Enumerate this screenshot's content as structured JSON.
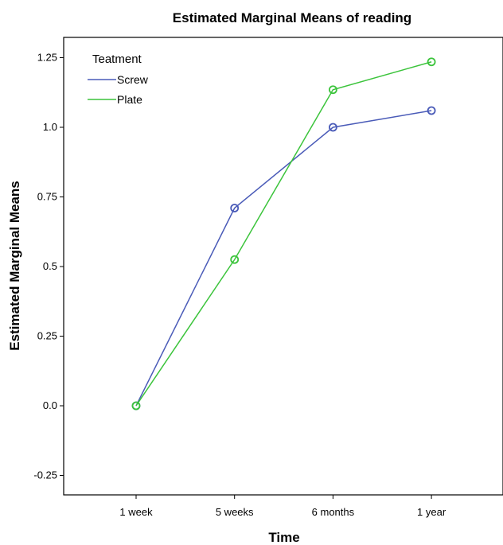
{
  "chart_data": {
    "type": "line",
    "title": "Estimated Marginal Means of reading",
    "xlabel": "Time",
    "ylabel": "Estimated Marginal Means",
    "categories": [
      "1 week",
      "5 weeks",
      "6 months",
      "1 year"
    ],
    "ylim": [
      -0.3,
      1.35
    ],
    "yticks": [
      -0.25,
      0.0,
      0.25,
      0.5,
      0.75,
      1.0,
      1.25
    ],
    "ytick_labels": [
      "-0.25",
      "0.0",
      "0.25",
      "0.5",
      "0.75",
      "1.0",
      "1.25"
    ],
    "grid": false,
    "legend": {
      "title": "Teatment",
      "placement": "top-left"
    },
    "series": [
      {
        "name": "Screw",
        "color": "#4a5bb8",
        "values": [
          0.0,
          0.71,
          1.0,
          1.06
        ]
      },
      {
        "name": "Plate",
        "color": "#3cc43c",
        "values": [
          0.0,
          0.525,
          1.135,
          1.235
        ]
      }
    ]
  }
}
